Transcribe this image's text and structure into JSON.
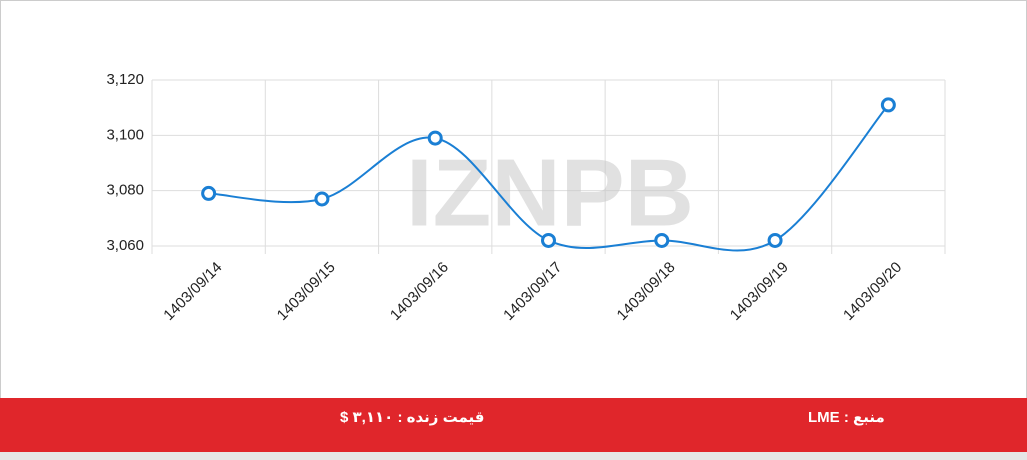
{
  "chart_data": {
    "type": "line",
    "categories": [
      "1403/09/14",
      "1403/09/15",
      "1403/09/16",
      "1403/09/17",
      "1403/09/18",
      "1403/09/19",
      "1403/09/20"
    ],
    "series": [
      {
        "color": "#1a7fd4",
        "values": [
          3079,
          3077,
          3099,
          3062,
          3062,
          3062,
          3111
        ]
      }
    ],
    "ylim": [
      3060,
      3120
    ],
    "yticks": [
      {
        "value": 3060,
        "label": "3,060"
      },
      {
        "value": 3080,
        "label": "3,080"
      },
      {
        "value": 3100,
        "label": "3,100"
      },
      {
        "value": 3120,
        "label": "3,120"
      }
    ],
    "grid": true
  },
  "watermark": {
    "text": "IZNPB"
  },
  "footer": {
    "price": "قیمت زنده : ۳,۱۱۰ $",
    "source": "منبع : LME"
  }
}
